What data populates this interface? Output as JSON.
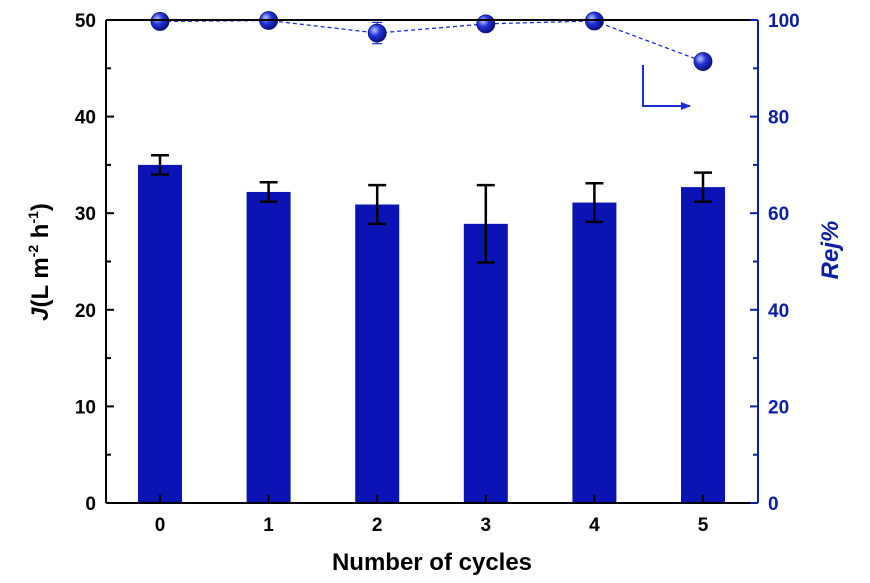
{
  "chart_data": {
    "type": "bar",
    "categories": [
      "0",
      "1",
      "2",
      "3",
      "4",
      "5"
    ],
    "series": [
      {
        "axis": "left",
        "type": "bar",
        "values": [
          35.0,
          32.2,
          30.9,
          28.9,
          31.1,
          32.7
        ],
        "error": [
          1.0,
          1.0,
          2.0,
          4.0,
          2.0,
          1.5
        ],
        "color": "#0a14b4"
      },
      {
        "axis": "right",
        "type": "line",
        "values": [
          99.7,
          99.9,
          97.3,
          99.2,
          99.8,
          91.4
        ],
        "error": [
          0.4,
          0.4,
          2.2,
          0.4,
          0.4,
          0.0
        ],
        "color": "#1a2fd0",
        "line_style": "dashed"
      }
    ],
    "xlabel": "Number of cycles",
    "ylabel": {
      "main": "J",
      "open": "(L m",
      "sup1": "-2",
      "mid": " h",
      "sup2": "-1",
      "close": ")"
    },
    "y2label": "Rej%",
    "ylim": [
      0,
      50
    ],
    "y2lim": [
      0,
      100
    ],
    "yticks": [
      "0",
      "10",
      "20",
      "30",
      "40",
      "50"
    ],
    "y2ticks": [
      "0",
      "20",
      "40",
      "60",
      "80",
      "100"
    ],
    "grid": false,
    "legend": "none",
    "colors": {
      "bar": "#0a14b4",
      "right_axis": "#0d1fa0",
      "marker": "#1a2fd0"
    }
  }
}
